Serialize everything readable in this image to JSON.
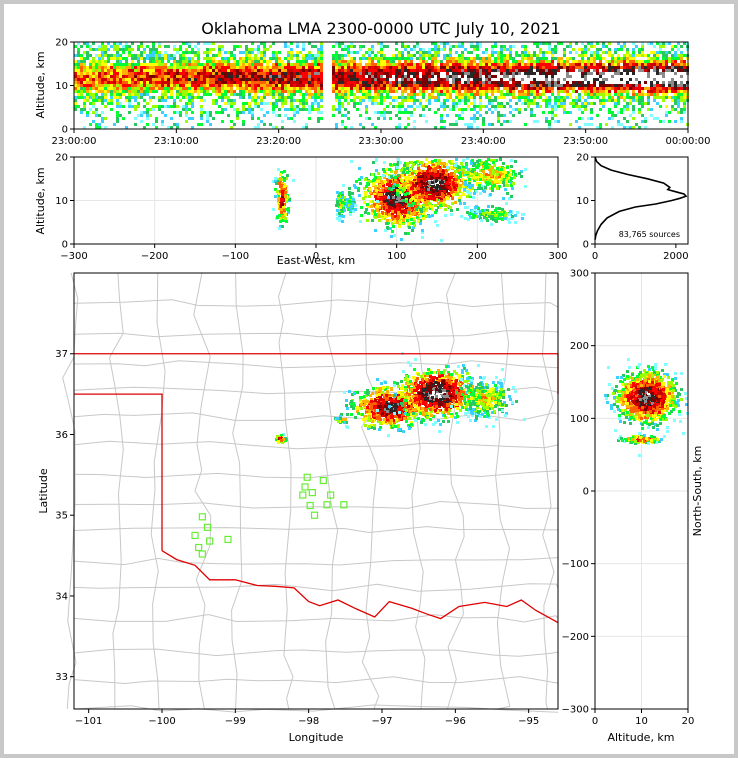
{
  "figure": {
    "title": "Oklahoma LMA 2300-0000 UTC July 10, 2021"
  },
  "chart_data": [
    {
      "panel": "altitude-time",
      "type": "heatmap",
      "ylabel": "Altitude, km",
      "xlim": [
        "23:00:00",
        "00:00:00"
      ],
      "ylim": [
        0,
        20
      ],
      "xticks": [
        "23:00:00",
        "23:10:00",
        "23:20:00",
        "23:30:00",
        "23:40:00",
        "23:50:00",
        "00:00:00"
      ],
      "yticks": [
        "0",
        "10",
        "20"
      ],
      "data_gap": [
        "23:24:30",
        "23:25:00"
      ],
      "density_core_altitude_km": [
        8,
        16
      ],
      "intensity_trend": "increasing toward 00:00:00"
    },
    {
      "panel": "altitude-eastwest",
      "type": "heatmap",
      "xlabel": "East-West, km",
      "ylabel": "Altitude, km",
      "xlim": [
        -300,
        300
      ],
      "ylim": [
        0,
        20
      ],
      "xticks": [
        "−300",
        "−200",
        "−100",
        "0",
        "100",
        "200",
        "300"
      ],
      "yticks": [
        "0",
        "10",
        "20"
      ],
      "grid": true,
      "clusters": [
        {
          "x_km": [
            -50,
            -35
          ],
          "z_km": [
            4,
            16
          ]
        },
        {
          "x_km": [
            25,
            45
          ],
          "z_km": [
            7,
            12
          ]
        },
        {
          "x_km": [
            60,
            200
          ],
          "z_km": [
            4,
            19
          ]
        },
        {
          "x_km": [
            180,
            260
          ],
          "z_km": [
            5,
            20
          ]
        }
      ]
    },
    {
      "panel": "altitude-histogram",
      "type": "line",
      "annotation": "83,765 sources",
      "xlim": [
        0,
        2300
      ],
      "ylim": [
        0,
        20
      ],
      "xticks": [
        "0",
        "2000"
      ],
      "yticks": [
        "0",
        "10",
        "20"
      ],
      "x": [
        0,
        20,
        60,
        150,
        300,
        600,
        1000,
        1500,
        1900,
        2100,
        2250,
        2200,
        2000,
        1800,
        1850,
        1700,
        1300,
        800,
        400,
        150,
        40,
        0
      ],
      "y": [
        1,
        2,
        3,
        4.5,
        6,
        7.5,
        8.5,
        9.2,
        10,
        10.5,
        11,
        11.5,
        12,
        12.5,
        13,
        14,
        15,
        16,
        17,
        18,
        19,
        20
      ]
    },
    {
      "panel": "plan-view",
      "type": "heatmap",
      "xlabel": "Longitude",
      "ylabel": "Latitude",
      "xlim": [
        -101.2,
        -94.6
      ],
      "ylim": [
        32.6,
        38.0
      ],
      "xticks": [
        "−101",
        "−100",
        "−99",
        "−98",
        "−97",
        "−96",
        "−95"
      ],
      "yticks": [
        "33",
        "34",
        "35",
        "36",
        "37"
      ],
      "stations": [
        [
          -99.45,
          34.98
        ],
        [
          -99.38,
          34.85
        ],
        [
          -99.55,
          34.75
        ],
        [
          -99.35,
          34.68
        ],
        [
          -99.5,
          34.6
        ],
        [
          -99.45,
          34.52
        ],
        [
          -99.1,
          34.7
        ],
        [
          -98.02,
          35.47
        ],
        [
          -98.05,
          35.35
        ],
        [
          -98.08,
          35.25
        ],
        [
          -97.95,
          35.28
        ],
        [
          -97.8,
          35.43
        ],
        [
          -97.7,
          35.25
        ],
        [
          -97.75,
          35.13
        ],
        [
          -97.98,
          35.12
        ],
        [
          -97.92,
          35.0
        ],
        [
          -97.52,
          35.13
        ]
      ],
      "clusters": [
        {
          "lon": [
            -97.3,
            -95.2
          ],
          "lat": [
            36.1,
            36.8
          ]
        },
        {
          "lon": [
            -98.45,
            -98.3
          ],
          "lat": [
            35.9,
            36.0
          ]
        },
        {
          "lon": [
            -97.65,
            -97.45
          ],
          "lat": [
            36.15,
            36.22
          ]
        }
      ]
    },
    {
      "panel": "northsouth-altitude",
      "type": "heatmap",
      "xlabel": "Altitude, km",
      "ylabel": "North-South, km",
      "xlim": [
        0,
        20
      ],
      "ylim": [
        -300,
        300
      ],
      "xticks": [
        "0",
        "10",
        "20"
      ],
      "yticks": [
        "−300",
        "−200",
        "−100",
        "0",
        "100",
        "200",
        "300"
      ],
      "grid": true,
      "clusters": [
        {
          "z_km": [
            2,
            19
          ],
          "y_km": [
            85,
            175
          ]
        },
        {
          "z_km": [
            5,
            15
          ],
          "y_km": [
            65,
            80
          ]
        }
      ]
    }
  ]
}
